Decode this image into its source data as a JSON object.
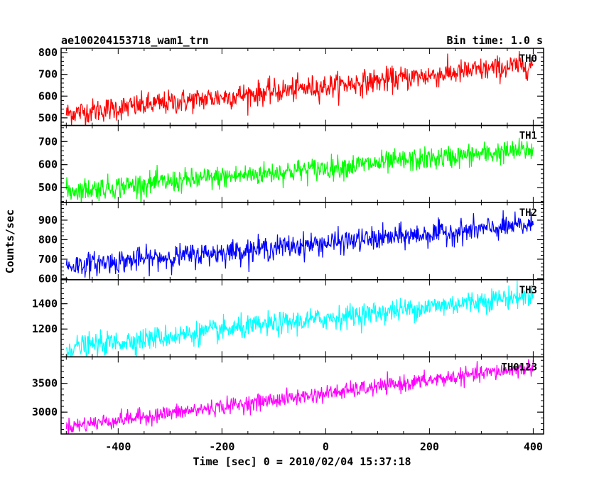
{
  "header": {
    "title": "ae100204153718_wam1_trn",
    "bin_time": "Bin time: 1.0 s"
  },
  "chart_data": {
    "type": "line",
    "xlabel": "Time [sec] 0 = 2010/02/04 15:37:18",
    "ylabel": "Counts/sec",
    "xlim": [
      -510,
      420
    ],
    "x_range": [
      -500,
      400
    ],
    "x_step": 1,
    "xticks": [
      -400,
      -200,
      0,
      200,
      400
    ],
    "panels": [
      {
        "name": "TH0",
        "color": "#ff0000",
        "ylim": [
          465,
          820
        ],
        "yticks": [
          500,
          600,
          700,
          800
        ],
        "start": 520,
        "end": 745,
        "noise": 28
      },
      {
        "name": "TH1",
        "color": "#00ff00",
        "ylim": [
          435,
          770
        ],
        "yticks": [
          500,
          600,
          700
        ],
        "start": 485,
        "end": 665,
        "noise": 25
      },
      {
        "name": "TH2",
        "color": "#0000ff",
        "ylim": [
          595,
          990
        ],
        "yticks": [
          600,
          700,
          800,
          900
        ],
        "start": 665,
        "end": 875,
        "noise": 30
      },
      {
        "name": "TH3",
        "color": "#00ffff",
        "ylim": [
          980,
          1590
        ],
        "yticks": [
          1200,
          1400
        ],
        "start": 1050,
        "end": 1470,
        "noise": 45
      },
      {
        "name": "TH0123",
        "color": "#ff00ff",
        "ylim": [
          2620,
          3960
        ],
        "yticks": [
          3000,
          3500
        ],
        "start": 2750,
        "end": 3780,
        "noise": 70
      }
    ]
  }
}
